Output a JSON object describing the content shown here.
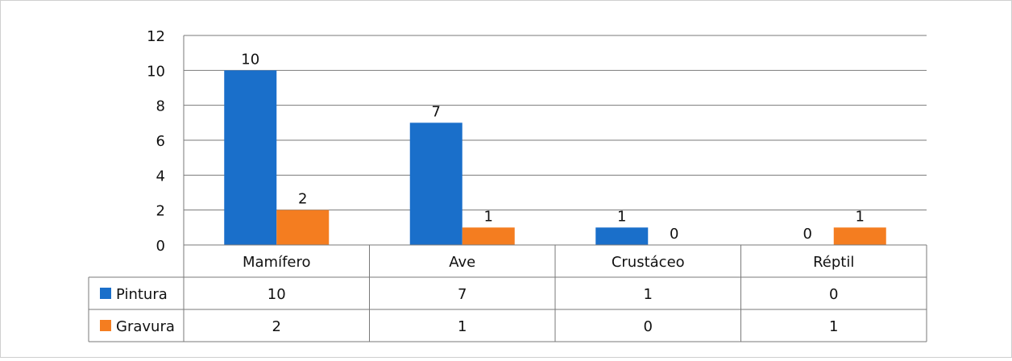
{
  "chart_data": {
    "type": "bar",
    "categories": [
      "Mamífero",
      "Ave",
      "Crustáceo",
      "Réptil"
    ],
    "series": [
      {
        "name": "Pintura",
        "values": [
          10,
          7,
          1,
          0
        ],
        "color": "#1a6fca"
      },
      {
        "name": "Gravura",
        "values": [
          2,
          1,
          0,
          1
        ],
        "color": "#f47d20"
      }
    ],
    "ylim": [
      0,
      12
    ],
    "yticks": [
      "0",
      "2",
      "4",
      "6",
      "8",
      "10",
      "12"
    ],
    "grid": true,
    "legend": "data-table-rows",
    "table": {
      "rows": [
        {
          "label": "Pintura",
          "cells": [
            "10",
            "7",
            "1",
            "0"
          ]
        },
        {
          "label": "Gravura",
          "cells": [
            "2",
            "1",
            "0",
            "1"
          ]
        }
      ]
    }
  }
}
